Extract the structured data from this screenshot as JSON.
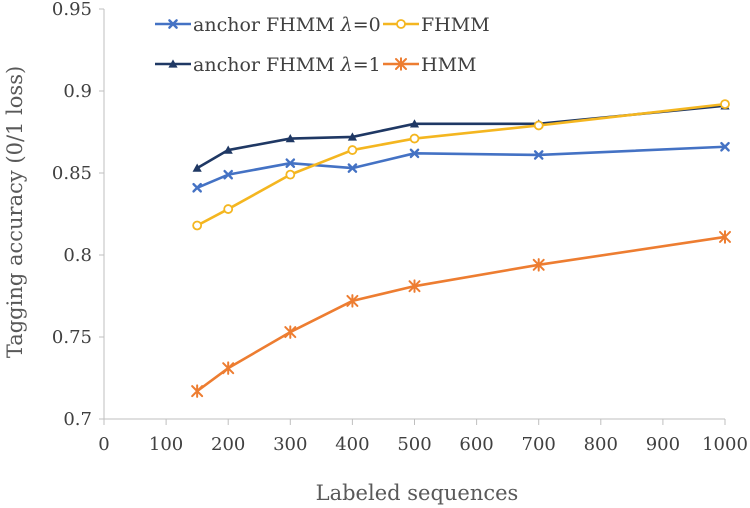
{
  "chart_data": {
    "type": "line",
    "xlabel": "Labeled sequences",
    "ylabel": "Tagging accuracy (0/1 loss)",
    "xlim": [
      0,
      1000
    ],
    "ylim": [
      0.7,
      0.95
    ],
    "xticks": [
      0,
      100,
      200,
      300,
      400,
      500,
      600,
      700,
      800,
      900,
      1000
    ],
    "yticks": [
      0.7,
      0.75,
      0.8,
      0.85,
      0.9,
      0.95
    ],
    "ytick_labels": [
      "0.7",
      "0.75",
      "0.8",
      "0.85",
      "0.9",
      "0.95"
    ],
    "grid": false,
    "legend_position": "top",
    "x": [
      150,
      200,
      300,
      400,
      500,
      700,
      1000
    ],
    "series": [
      {
        "name": "anchor FHMM λ=0",
        "name_parts": [
          "anchor FHMM ",
          "λ",
          "=0"
        ],
        "color": "#4472C4",
        "marker": "x",
        "values": [
          0.841,
          0.849,
          0.856,
          0.853,
          0.862,
          0.861,
          0.866
        ]
      },
      {
        "name": "anchor FHMM λ=1",
        "name_parts": [
          "anchor FHMM ",
          "λ",
          "=1"
        ],
        "color": "#1F3864",
        "marker": "triangle",
        "values": [
          0.853,
          0.864,
          0.871,
          0.872,
          0.88,
          0.88,
          0.891
        ]
      },
      {
        "name": "FHMM",
        "color": "#F4B620",
        "marker": "circle",
        "values": [
          0.818,
          0.828,
          0.849,
          0.864,
          0.871,
          0.879,
          0.892
        ]
      },
      {
        "name": "HMM",
        "color": "#ED7D31",
        "marker": "star",
        "values": [
          0.717,
          0.731,
          0.753,
          0.772,
          0.781,
          0.794,
          0.811
        ]
      }
    ]
  }
}
